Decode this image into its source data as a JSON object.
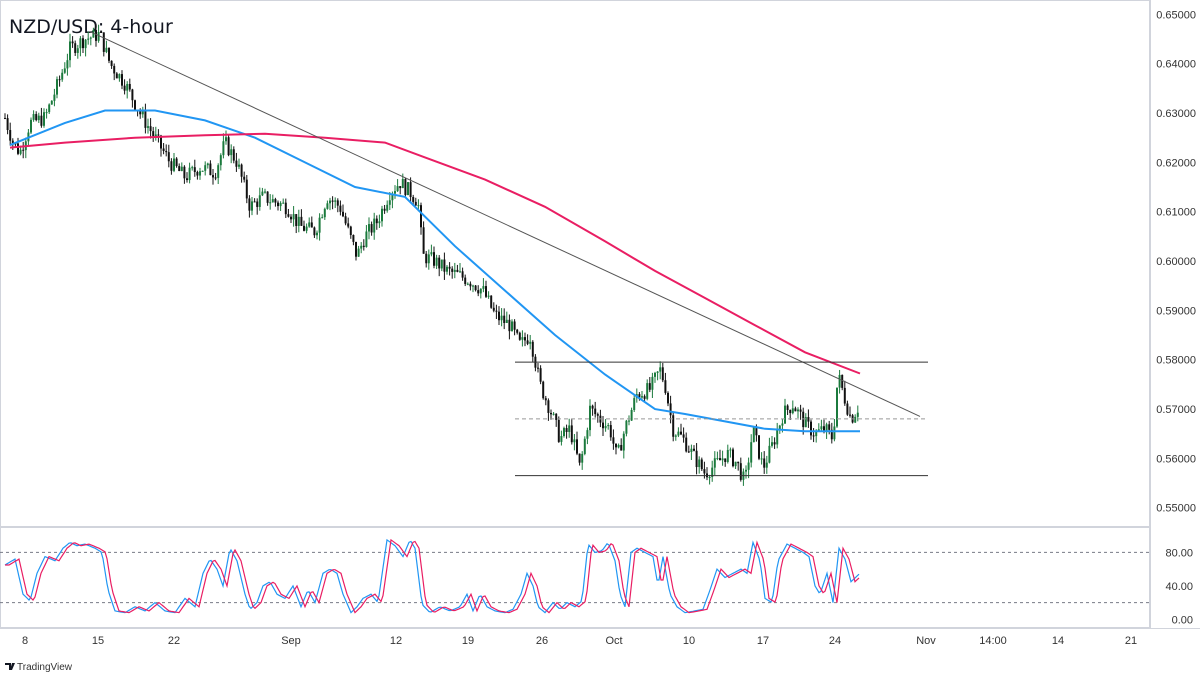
{
  "header": {
    "title": "NZD/USD: 4-hour"
  },
  "watermark": {
    "text": "TradingView"
  },
  "chart_data": {
    "type": "candlestick",
    "title": "NZD/USD: 4-hour",
    "price_axis": {
      "ylim": [
        0.5465,
        0.6525
      ],
      "ticks": [
        "0.65000",
        "0.64000",
        "0.63000",
        "0.62000",
        "0.61000",
        "0.60000",
        "0.59000",
        "0.58000",
        "0.57000",
        "0.56000",
        "0.55000"
      ],
      "tick_values": [
        0.65,
        0.64,
        0.63,
        0.62,
        0.61,
        0.6,
        0.59,
        0.58,
        0.57,
        0.56,
        0.55
      ]
    },
    "time_axis": {
      "ticks": [
        "8",
        "15",
        "22",
        "Sep",
        "12",
        "19",
        "26",
        "Oct",
        "10",
        "17",
        "24",
        "Nov",
        "14:00",
        "14",
        "21"
      ]
    },
    "price_anchors": [
      [
        0,
        0.629
      ],
      [
        8,
        0.624
      ],
      [
        15,
        0.622
      ],
      [
        25,
        0.628
      ],
      [
        40,
        0.629
      ],
      [
        55,
        0.637
      ],
      [
        65,
        0.643
      ],
      [
        80,
        0.645
      ],
      [
        95,
        0.646
      ],
      [
        105,
        0.64
      ],
      [
        120,
        0.636
      ],
      [
        135,
        0.63
      ],
      [
        150,
        0.625
      ],
      [
        165,
        0.62
      ],
      [
        180,
        0.617
      ],
      [
        195,
        0.619
      ],
      [
        210,
        0.618
      ],
      [
        220,
        0.624
      ],
      [
        232,
        0.62
      ],
      [
        245,
        0.611
      ],
      [
        258,
        0.613
      ],
      [
        270,
        0.612
      ],
      [
        282,
        0.611
      ],
      [
        295,
        0.607
      ],
      [
        310,
        0.606
      ],
      [
        322,
        0.613
      ],
      [
        335,
        0.611
      ],
      [
        345,
        0.605
      ],
      [
        352,
        0.601
      ],
      [
        360,
        0.605
      ],
      [
        372,
        0.608
      ],
      [
        385,
        0.614
      ],
      [
        395,
        0.616
      ],
      [
        405,
        0.614
      ],
      [
        413,
        0.612
      ],
      [
        418,
        0.601
      ],
      [
        430,
        0.6
      ],
      [
        442,
        0.598
      ],
      [
        455,
        0.597
      ],
      [
        465,
        0.596
      ],
      [
        478,
        0.594
      ],
      [
        490,
        0.589
      ],
      [
        505,
        0.587
      ],
      [
        515,
        0.583
      ],
      [
        525,
        0.585
      ],
      [
        535,
        0.575
      ],
      [
        545,
        0.57
      ],
      [
        555,
        0.564
      ],
      [
        565,
        0.566
      ],
      [
        575,
        0.558
      ],
      [
        585,
        0.57
      ],
      [
        595,
        0.568
      ],
      [
        605,
        0.566
      ],
      [
        612,
        0.56
      ],
      [
        620,
        0.566
      ],
      [
        632,
        0.573
      ],
      [
        645,
        0.574
      ],
      [
        655,
        0.578
      ],
      [
        660,
        0.575
      ],
      [
        668,
        0.566
      ],
      [
        678,
        0.564
      ],
      [
        690,
        0.56
      ],
      [
        700,
        0.557
      ],
      [
        712,
        0.559
      ],
      [
        722,
        0.561
      ],
      [
        732,
        0.559
      ],
      [
        740,
        0.555
      ],
      [
        748,
        0.566
      ],
      [
        758,
        0.558
      ],
      [
        768,
        0.563
      ],
      [
        778,
        0.569
      ],
      [
        788,
        0.571
      ],
      [
        800,
        0.567
      ],
      [
        810,
        0.565
      ],
      [
        820,
        0.566
      ],
      [
        828,
        0.564
      ],
      [
        833,
        0.577
      ],
      [
        840,
        0.572
      ],
      [
        846,
        0.568
      ],
      [
        855,
        0.571
      ]
    ],
    "series": [
      {
        "name": "",
        "color": "#2196f3",
        "points": [
          [
            5,
            0.6235
          ],
          [
            60,
            0.628
          ],
          [
            100,
            0.6305
          ],
          [
            150,
            0.6305
          ],
          [
            200,
            0.6285
          ],
          [
            250,
            0.625
          ],
          [
            300,
            0.62
          ],
          [
            350,
            0.615
          ],
          [
            400,
            0.613
          ],
          [
            450,
            0.603
          ],
          [
            500,
            0.594
          ],
          [
            550,
            0.585
          ],
          [
            600,
            0.577
          ],
          [
            650,
            0.57
          ],
          [
            680,
            0.569
          ],
          [
            720,
            0.5675
          ],
          [
            760,
            0.566
          ],
          [
            800,
            0.5655
          ],
          [
            855,
            0.5655
          ]
        ]
      },
      {
        "name": "",
        "color": "#e91e63",
        "points": [
          [
            5,
            0.623
          ],
          [
            60,
            0.624
          ],
          [
            130,
            0.625
          ],
          [
            200,
            0.6255
          ],
          [
            260,
            0.6258
          ],
          [
            320,
            0.625
          ],
          [
            380,
            0.624
          ],
          [
            420,
            0.621
          ],
          [
            480,
            0.6165
          ],
          [
            540,
            0.611
          ],
          [
            600,
            0.604
          ],
          [
            650,
            0.598
          ],
          [
            700,
            0.5925
          ],
          [
            750,
            0.587
          ],
          [
            800,
            0.5815
          ],
          [
            855,
            0.5772
          ]
        ]
      }
    ],
    "lines": [
      {
        "kind": "trendline",
        "color": "#555555",
        "points": [
          [
            85,
            0.6465
          ],
          [
            915,
            0.5685
          ]
        ]
      },
      {
        "kind": "resistance",
        "color": "#333333",
        "points": [
          [
            510,
            0.5795
          ],
          [
            923,
            0.5795
          ]
        ]
      },
      {
        "kind": "support",
        "color": "#333333",
        "points": [
          [
            510,
            0.5565
          ],
          [
            923,
            0.5565
          ]
        ]
      },
      {
        "kind": "mid-range",
        "color": "#999999",
        "dashed": true,
        "points": [
          [
            510,
            0.568
          ],
          [
            923,
            0.568
          ]
        ]
      }
    ],
    "oscillator": {
      "ylim": [
        -8,
        108
      ],
      "ticks": [
        "80.00",
        "40.00",
        "0.00"
      ],
      "tick_values": [
        80,
        40,
        0
      ],
      "levels": [
        80,
        20
      ],
      "anchors": [
        [
          0,
          65
        ],
        [
          10,
          72
        ],
        [
          18,
          30
        ],
        [
          25,
          22
        ],
        [
          32,
          55
        ],
        [
          40,
          75
        ],
        [
          50,
          70
        ],
        [
          58,
          85
        ],
        [
          65,
          92
        ],
        [
          72,
          88
        ],
        [
          80,
          90
        ],
        [
          90,
          85
        ],
        [
          97,
          80
        ],
        [
          103,
          35
        ],
        [
          110,
          10
        ],
        [
          120,
          8
        ],
        [
          130,
          15
        ],
        [
          140,
          10
        ],
        [
          150,
          20
        ],
        [
          160,
          10
        ],
        [
          170,
          8
        ],
        [
          180,
          25
        ],
        [
          190,
          15
        ],
        [
          198,
          55
        ],
        [
          205,
          72
        ],
        [
          212,
          60
        ],
        [
          218,
          40
        ],
        [
          225,
          85
        ],
        [
          232,
          70
        ],
        [
          240,
          30
        ],
        [
          245,
          12
        ],
        [
          252,
          20
        ],
        [
          258,
          40
        ],
        [
          265,
          45
        ],
        [
          272,
          30
        ],
        [
          280,
          25
        ],
        [
          288,
          40
        ],
        [
          296,
          15
        ],
        [
          303,
          35
        ],
        [
          310,
          20
        ],
        [
          318,
          55
        ],
        [
          325,
          60
        ],
        [
          332,
          55
        ],
        [
          338,
          30
        ],
        [
          346,
          8
        ],
        [
          352,
          15
        ],
        [
          358,
          25
        ],
        [
          366,
          30
        ],
        [
          373,
          20
        ],
        [
          382,
          95
        ],
        [
          390,
          88
        ],
        [
          398,
          75
        ],
        [
          405,
          95
        ],
        [
          410,
          85
        ],
        [
          417,
          18
        ],
        [
          425,
          8
        ],
        [
          435,
          15
        ],
        [
          445,
          10
        ],
        [
          455,
          15
        ],
        [
          462,
          30
        ],
        [
          468,
          10
        ],
        [
          475,
          30
        ],
        [
          482,
          15
        ],
        [
          490,
          10
        ],
        [
          500,
          8
        ],
        [
          508,
          12
        ],
        [
          516,
          30
        ],
        [
          522,
          55
        ],
        [
          528,
          40
        ],
        [
          533,
          15
        ],
        [
          540,
          8
        ],
        [
          548,
          20
        ],
        [
          555,
          12
        ],
        [
          562,
          20
        ],
        [
          570,
          15
        ],
        [
          577,
          22
        ],
        [
          583,
          90
        ],
        [
          590,
          80
        ],
        [
          597,
          82
        ],
        [
          603,
          92
        ],
        [
          610,
          70
        ],
        [
          615,
          30
        ],
        [
          620,
          15
        ],
        [
          626,
          80
        ],
        [
          632,
          85
        ],
        [
          640,
          80
        ],
        [
          648,
          75
        ],
        [
          653,
          40
        ],
        [
          658,
          75
        ],
        [
          665,
          30
        ],
        [
          672,
          15
        ],
        [
          680,
          8
        ],
        [
          690,
          10
        ],
        [
          698,
          12
        ],
        [
          705,
          35
        ],
        [
          712,
          60
        ],
        [
          720,
          50
        ],
        [
          728,
          55
        ],
        [
          736,
          60
        ],
        [
          742,
          55
        ],
        [
          748,
          92
        ],
        [
          755,
          70
        ],
        [
          760,
          25
        ],
        [
          767,
          20
        ],
        [
          773,
          70
        ],
        [
          782,
          90
        ],
        [
          790,
          85
        ],
        [
          798,
          80
        ],
        [
          804,
          75
        ],
        [
          810,
          40
        ],
        [
          815,
          30
        ],
        [
          822,
          55
        ],
        [
          828,
          20
        ],
        [
          834,
          85
        ],
        [
          840,
          72
        ],
        [
          846,
          45
        ],
        [
          855,
          55
        ]
      ]
    }
  }
}
